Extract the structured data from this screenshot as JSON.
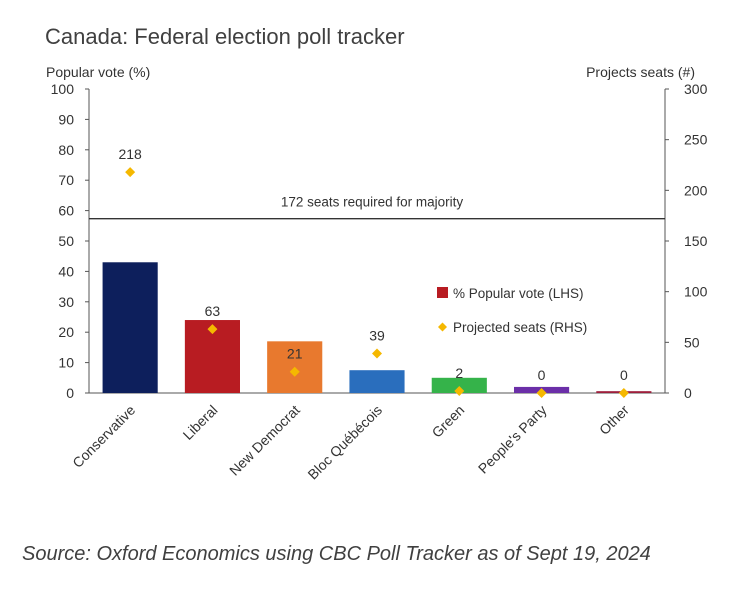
{
  "chart_data": {
    "type": "bar",
    "title": "Canada: Federal election poll tracker",
    "ylabel_left": "Popular vote  (%)",
    "ylabel_right": "Projects seats (#)",
    "categories": [
      "Conservative",
      "Liberal",
      "New Democrat",
      "Bloc Québécois",
      "Green",
      "People's Party",
      "Other"
    ],
    "series": [
      {
        "name": "% Popular vote (LHS)",
        "axis": "left",
        "mark": "bar",
        "values": [
          43,
          24,
          17,
          7.5,
          5,
          2,
          0.6
        ],
        "colors": [
          "#0d1f5c",
          "#b81c22",
          "#e8792e",
          "#2a6ebd",
          "#35b34a",
          "#6b2fa8",
          "#9e1f3c"
        ]
      },
      {
        "name": "Projected seats (RHS)",
        "axis": "right",
        "mark": "diamond",
        "values": [
          218,
          63,
          21,
          39,
          2,
          0,
          0
        ],
        "labels": [
          "218",
          "63",
          "21",
          "39",
          "2",
          "0",
          "0"
        ],
        "color": "#f5b800"
      }
    ],
    "ylim_left": [
      0,
      100
    ],
    "yticks_left": [
      "0",
      "10",
      "20",
      "30",
      "40",
      "50",
      "60",
      "70",
      "80",
      "90",
      "100"
    ],
    "ylim_right": [
      0,
      300
    ],
    "yticks_right": [
      "0",
      "50",
      "100",
      "150",
      "200",
      "250",
      "300"
    ],
    "reference_line": {
      "axis": "right",
      "value": 172,
      "label": "172 seats required for majority"
    },
    "legend_position": "right-center",
    "grid": false
  },
  "source": "Source: Oxford Economics using CBC Poll Tracker as of Sept 19, 2024"
}
